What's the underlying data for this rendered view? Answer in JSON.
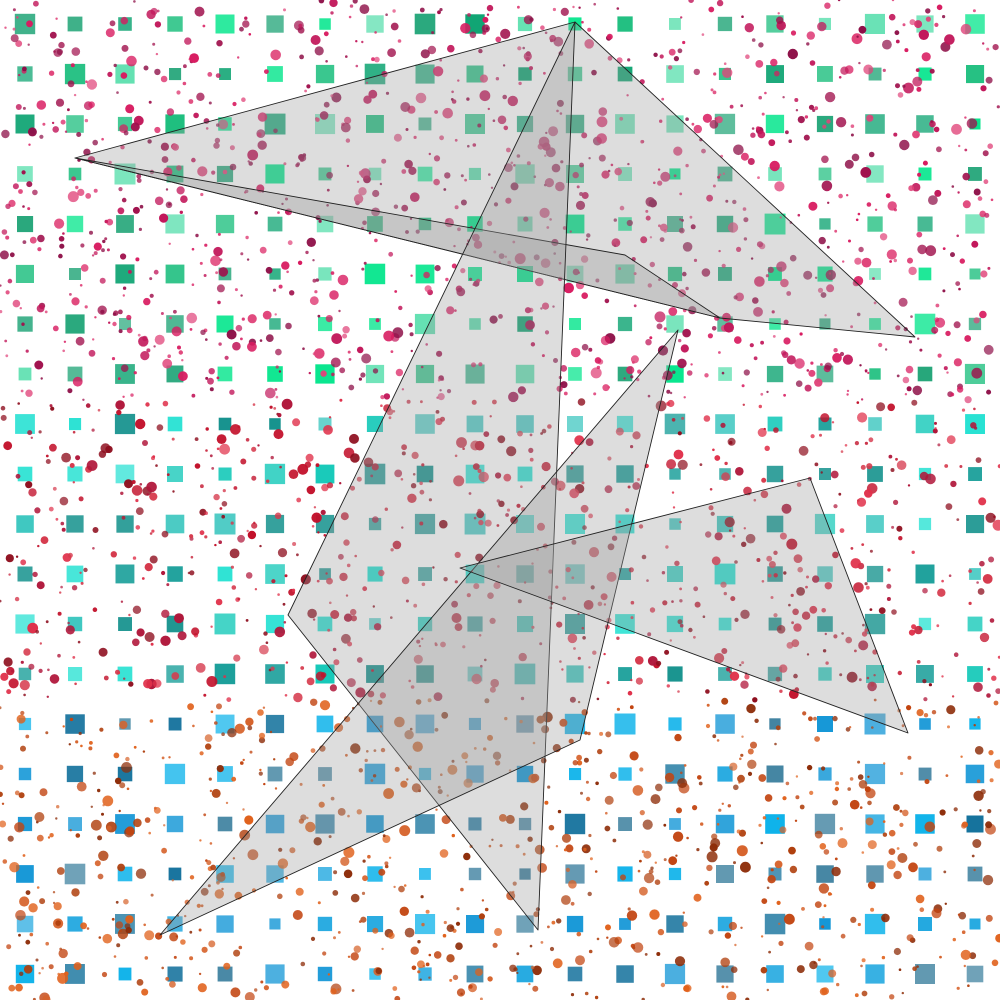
{
  "artwork": {
    "background": "#ffffff",
    "grid": {
      "rows": 20,
      "cols": 20
    },
    "square_colors": {
      "top": [
        "#00e58a",
        "#1fbf7f",
        "#27a77b",
        "#5fe0b0",
        "#0ea472"
      ],
      "middle": [
        "#17c9b9",
        "#1a9f9a",
        "#25e1d2",
        "#3ec7c0",
        "#0f8f8a"
      ],
      "bottom": [
        "#1296d6",
        "#0e6e9a",
        "#24a9e0",
        "#3b7f9e",
        "#0fb3ea"
      ]
    },
    "dot_colors": {
      "top": [
        "#c2185b",
        "#8e1048",
        "#e0447a",
        "#a0104c",
        "#d81b60"
      ],
      "middle": [
        "#c2102a",
        "#8e0e1e",
        "#e0304a",
        "#b0163a",
        "#d63a4d"
      ],
      "bottom": [
        "#c24410",
        "#8e2e0a",
        "#e0601a",
        "#b0400e",
        "#d6622a"
      ]
    },
    "polygon_fill": "#9a9a9a",
    "polygon_stroke": "#222222",
    "polygon_opacity": 0.34
  }
}
